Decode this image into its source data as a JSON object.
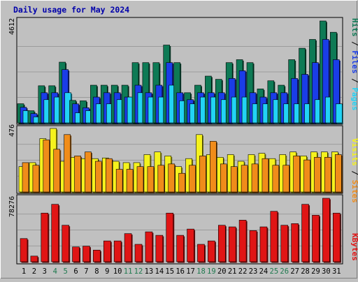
{
  "title": "Daily usage for May 2024",
  "colors": {
    "background": "#c0c0c0",
    "title": "#0000aa",
    "hits": "#0e7a55",
    "files": "#1a3de8",
    "pages": "#22d3f5",
    "visits": "#f5f21d",
    "sites": "#f08c1a",
    "kbytes": "#e01515",
    "weekend_label": "#1f7a4f",
    "weekday_label": "#000000"
  },
  "chart_data": [
    {
      "type": "bar",
      "title": "Daily usage for May 2024",
      "categories": [
        "1",
        "2",
        "3",
        "4",
        "5",
        "6",
        "7",
        "8",
        "9",
        "10",
        "11",
        "12",
        "13",
        "14",
        "15",
        "16",
        "17",
        "18",
        "19",
        "20",
        "21",
        "22",
        "23",
        "24",
        "25",
        "26",
        "27",
        "28",
        "29",
        "30",
        "31"
      ],
      "weekend_days": [
        "4",
        "5",
        "11",
        "12",
        "18",
        "19",
        "25",
        "26"
      ],
      "ylabel_max": "4612",
      "ylim": [
        0,
        4612
      ],
      "legend": [
        "Pages",
        "Files",
        "Hits"
      ],
      "series": [
        {
          "name": "Hits",
          "values": [
            866,
            550,
            1679,
            1679,
            2748,
            1017,
            998,
            1705,
            1705,
            1705,
            1705,
            2727,
            2727,
            2727,
            3522,
            2727,
            1364,
            1705,
            2116,
            1971,
            2727,
            2860,
            2727,
            1536,
            1905,
            1705,
            2860,
            3378,
            3776,
            4612,
            4101
          ]
        },
        {
          "name": "Files",
          "values": [
            705,
            420,
            1364,
            1364,
            2412,
            860,
            686,
            1167,
            1364,
            1364,
            1167,
            1705,
            1364,
            1705,
            2727,
            1364,
            1050,
            1364,
            1364,
            1364,
            2010,
            2358,
            1364,
            1167,
            1364,
            1364,
            2010,
            2196,
            2727,
            3776,
            2860
          ]
        },
        {
          "name": "Pages",
          "values": [
            550,
            270,
            1050,
            1167,
            1364,
            455,
            550,
            860,
            860,
            1050,
            1167,
            1364,
            1167,
            1167,
            1705,
            998,
            860,
            1167,
            1167,
            1050,
            1167,
            1167,
            860,
            860,
            1050,
            860,
            860,
            860,
            1050,
            1167,
            860
          ]
        }
      ]
    },
    {
      "type": "bar",
      "categories": [
        "1",
        "2",
        "3",
        "4",
        "5",
        "6",
        "7",
        "8",
        "9",
        "10",
        "11",
        "12",
        "13",
        "14",
        "15",
        "16",
        "17",
        "18",
        "19",
        "20",
        "21",
        "22",
        "23",
        "24",
        "25",
        "26",
        "27",
        "28",
        "29",
        "30",
        "31"
      ],
      "ylabel_max": "476",
      "ylim": [
        0,
        476
      ],
      "legend": [
        "Sites",
        "Visits"
      ],
      "series": [
        {
          "name": "Visits",
          "values": [
            190,
            220,
            400,
            476,
            230,
            260,
            250,
            250,
            255,
            230,
            220,
            220,
            280,
            300,
            270,
            190,
            250,
            430,
            280,
            260,
            280,
            230,
            280,
            290,
            250,
            280,
            300,
            270,
            300,
            300,
            300
          ]
        },
        {
          "name": "Sites",
          "values": [
            220,
            200,
            390,
            320,
            430,
            270,
            300,
            230,
            250,
            170,
            170,
            190,
            190,
            200,
            210,
            140,
            200,
            270,
            380,
            210,
            190,
            200,
            210,
            250,
            200,
            200,
            270,
            240,
            260,
            260,
            280
          ]
        }
      ]
    },
    {
      "type": "bar",
      "categories": [
        "1",
        "2",
        "3",
        "4",
        "5",
        "6",
        "7",
        "8",
        "9",
        "10",
        "11",
        "12",
        "13",
        "14",
        "15",
        "16",
        "17",
        "18",
        "19",
        "20",
        "21",
        "22",
        "23",
        "24",
        "25",
        "26",
        "27",
        "28",
        "29",
        "30",
        "31"
      ],
      "ylabel_max": "78276",
      "ylim": [
        0,
        78276
      ],
      "legend": [
        "KBytes"
      ],
      "series": [
        {
          "name": "KBytes",
          "values": [
            28600,
            7000,
            60000,
            70800,
            45000,
            18300,
            19200,
            14400,
            25700,
            25700,
            34700,
            21500,
            36900,
            32600,
            60000,
            32600,
            40300,
            21500,
            25700,
            45000,
            43000,
            51300,
            38400,
            43000,
            62200,
            45000,
            47000,
            70800,
            57400,
            78276,
            60000
          ]
        }
      ]
    }
  ]
}
